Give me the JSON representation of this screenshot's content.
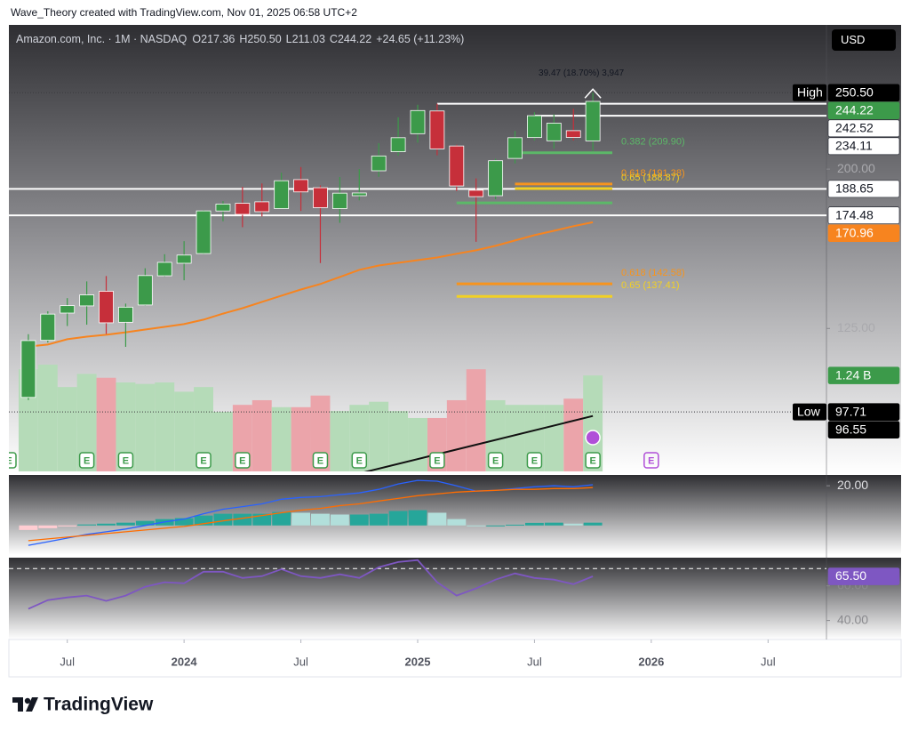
{
  "header": {
    "caption": "Wave_Theory created with TradingView.com, Nov 01, 2025 06:58 UTC+2",
    "currency": "USD"
  },
  "footer": {
    "brand": "TradingView"
  },
  "chart_data": [
    {
      "type": "candlestick",
      "title": "Amazon.com, Inc. · 1M · NASDAQ",
      "ohlc_prefixes": [
        "O",
        "H",
        "L",
        "C"
      ],
      "change": "+24.65 (+11.23%)",
      "x": [
        "2023-05",
        "2023-06",
        "2023-07",
        "2023-08",
        "2023-09",
        "2023-10",
        "2023-11",
        "2023-12",
        "2024-01",
        "2024-02",
        "2024-03",
        "2024-04",
        "2024-05",
        "2024-06",
        "2024-07",
        "2024-08",
        "2024-09",
        "2024-10",
        "2024-11",
        "2024-12",
        "2025-01",
        "2025-02",
        "2025-03",
        "2025-04",
        "2025-05",
        "2025-06",
        "2025-07",
        "2025-08",
        "2025-09",
        "2025-10"
      ],
      "open": [
        102.0,
        120.7,
        130.8,
        133.6,
        139.5,
        127.3,
        133.96,
        146.0,
        151.5,
        155.9,
        176.75,
        180.8,
        181.6,
        178.0,
        193.9,
        189.3,
        178.0,
        184.9,
        199.0,
        210.5,
        222.0,
        237.4,
        214.1,
        187.9,
        184.9,
        206.4,
        219.5,
        217.4,
        224.0,
        217.36
      ],
      "high": [
        122.9,
        131.5,
        136.7,
        143.6,
        145.9,
        134.5,
        149.3,
        155.6,
        161.7,
        177.2,
        182.0,
        189.8,
        191.7,
        197.9,
        201.2,
        190.6,
        195.4,
        200.0,
        215.9,
        233.0,
        241.8,
        242.52,
        214.9,
        194.6,
        206.2,
        223.8,
        236.5,
        235.0,
        238.9,
        250.5
      ],
      "low": [
        101.2,
        119.9,
        125.9,
        126.4,
        123.0,
        118.4,
        133.7,
        145.6,
        144.1,
        155.6,
        171.5,
        168.5,
        173.9,
        178.0,
        176.8,
        151.6,
        170.7,
        182.4,
        195.5,
        208.1,
        216.2,
        208.3,
        187.5,
        161.4,
        183.0,
        203.4,
        217.6,
        212.4,
        217.6,
        211.03
      ],
      "close": [
        120.6,
        130.4,
        133.7,
        138.0,
        127.1,
        133.1,
        146.1,
        151.9,
        155.2,
        176.8,
        180.4,
        175.0,
        176.4,
        193.25,
        186.98,
        178.5,
        186.3,
        186.4,
        207.9,
        219.4,
        237.7,
        212.3,
        190.3,
        184.4,
        205.0,
        219.4,
        234.11,
        229.0,
        219.6,
        244.22
      ],
      "colors": {
        "up": "#3c9a4a",
        "down": "#c62f3a"
      },
      "log_scale": true,
      "ylim": [
        82,
        306
      ],
      "yticks": [
        {
          "value": 125,
          "label": "125.00"
        },
        {
          "value": 200,
          "label": "200.00"
        }
      ],
      "xlim": [
        "2023-04",
        "2026-10"
      ],
      "xticks": [
        {
          "value": "2023-07",
          "label": "Jul"
        },
        {
          "value": "2024-01",
          "label": "2024"
        },
        {
          "value": "2024-07",
          "label": "Jul"
        },
        {
          "value": "2025-01",
          "label": "2025"
        },
        {
          "value": "2025-07",
          "label": "Jul"
        },
        {
          "value": "2026-01",
          "label": "2026"
        },
        {
          "value": "2026-07",
          "label": "Jul"
        }
      ],
      "moving_average": {
        "color": "#f7841f",
        "values": [
          118.5,
          119.2,
          121.1,
          122.0,
          122.7,
          123.6,
          124.6,
          125.6,
          126.6,
          128.3,
          130.6,
          132.7,
          135.2,
          137.7,
          140.2,
          142.5,
          145.5,
          148.6,
          150.5,
          151.7,
          152.9,
          154.1,
          155.8,
          157.4,
          159.5,
          162.0,
          164.6,
          166.7,
          169.0,
          170.96
        ]
      },
      "volume": {
        "values": [
          1.32,
          1.38,
          1.09,
          1.26,
          1.21,
          1.15,
          1.13,
          1.15,
          1.03,
          1.09,
          0.77,
          0.86,
          0.92,
          0.83,
          0.83,
          0.98,
          0.78,
          0.86,
          0.9,
          0.78,
          0.69,
          0.69,
          0.92,
          1.32,
          0.92,
          0.86,
          0.86,
          0.86,
          0.94,
          1.24
        ],
        "ylim": [
          0,
          5.77
        ],
        "colors": {
          "up": "#b5dbb8",
          "down": "#eba4aa"
        },
        "tag_label": "1.24 B"
      },
      "levels": [
        {
          "value": 250.5,
          "value_label": "250.50",
          "label": "High",
          "style": "dotted"
        },
        {
          "value": 97.71,
          "label": "Low",
          "style": "dotted"
        },
        {
          "value": 242.52,
          "start": "2025-02",
          "style": "solid"
        },
        {
          "value": 234.11,
          "start": "2025-07",
          "style": "solid"
        },
        {
          "value": 188.65,
          "style": "solid"
        },
        {
          "value": 174.48,
          "style": "solid"
        }
      ],
      "fib_levels": [
        {
          "value": 209.9,
          "label": "0.382 (209.90)",
          "color": "#5cb868",
          "start": "2025-06"
        },
        {
          "value": 191.38,
          "label": "0.618 (191.38)",
          "color": "#f7941d",
          "start": "2025-06"
        },
        {
          "value": 188.87,
          "label": "0.65 (188.87)",
          "color": "#f2d024",
          "start": "2025-06"
        },
        {
          "value": 181.0,
          "color": "#5cb868",
          "start": "2025-03"
        },
        {
          "value": 142.58,
          "label": "0.618 (142.58)",
          "color": "#f7941d",
          "start": "2025-03"
        },
        {
          "value": 137.41,
          "label": "0.65 (137.41)",
          "color": "#f2d024",
          "start": "2025-03"
        }
      ],
      "measure_label": "39.47 (18.70%) 3,947",
      "trendline": {
        "x": [
          "2024-10",
          "2025-10"
        ],
        "values": [
          81.5,
          96.55
        ],
        "color": "#111111"
      },
      "earnings": {
        "marker": "E",
        "x": [
          "2023-04",
          "2023-08",
          "2023-10",
          "2024-02",
          "2024-04",
          "2024-08",
          "2024-10",
          "2025-02",
          "2025-05",
          "2025-07",
          "2025-10"
        ],
        "upcoming": "2026-01"
      }
    },
    {
      "type": "line",
      "series": [
        {
          "color": "#2962ff",
          "values": [
            -10,
            -8.2,
            -6.4,
            -4.5,
            -3.2,
            -1.8,
            0,
            1.8,
            3.2,
            5.9,
            8.2,
            9.5,
            10.9,
            13.2,
            14.1,
            14.5,
            15.5,
            16.4,
            18.2,
            20.9,
            22.7,
            22.3,
            20,
            17.3,
            17.7,
            18.6,
            19.5,
            20,
            19.5,
            20.5
          ]
        },
        {
          "color": "#ff6d00",
          "values": [
            -7.7,
            -6.8,
            -5.9,
            -5,
            -4.1,
            -3.2,
            -2.3,
            -1.4,
            -0.5,
            0.9,
            2.3,
            3.6,
            5,
            6.4,
            7.7,
            8.6,
            10,
            10.9,
            12.3,
            13.6,
            15,
            15.9,
            16.8,
            17.3,
            17.7,
            18.2,
            18.2,
            18.6,
            18.6,
            19.1
          ]
        }
      ],
      "histogram": {
        "values": [
          -2.3,
          -1.4,
          -0.5,
          0.5,
          0.9,
          1.4,
          2.3,
          3.2,
          3.7,
          5,
          5.9,
          5.9,
          5.9,
          6.8,
          6.4,
          5.9,
          5.5,
          5.5,
          5.9,
          7.3,
          7.7,
          6.4,
          3.2,
          0,
          0,
          0.4,
          1.3,
          1.4,
          0.9,
          1.4
        ],
        "colors": [
          "#26a69a",
          "#b2dfdb",
          "#ff5252",
          "#ffcdd2"
        ]
      },
      "ylim": [
        -14,
        25
      ],
      "yticks": [
        {
          "value": 20,
          "label": "20.00"
        }
      ]
    },
    {
      "type": "line",
      "series": [
        {
          "color": "#7e57c2",
          "values": [
            46.7,
            51.8,
            53.3,
            54.4,
            51.3,
            54.4,
            59.5,
            62.1,
            61.5,
            68.2,
            68.2,
            64.6,
            65.6,
            69.7,
            65.6,
            64.6,
            66.7,
            64.6,
            70.8,
            73.8,
            74.9,
            62.1,
            54.4,
            58.5,
            63.6,
            67.2,
            64.6,
            63.6,
            61.0,
            65.5
          ]
        }
      ],
      "tag_label": "65.50",
      "reference_line": 70,
      "ylim": [
        29.5,
        75.8
      ],
      "yticks": [
        {
          "value": 40,
          "label": "40.00"
        },
        {
          "value": 60,
          "label": "60.00"
        }
      ]
    }
  ]
}
